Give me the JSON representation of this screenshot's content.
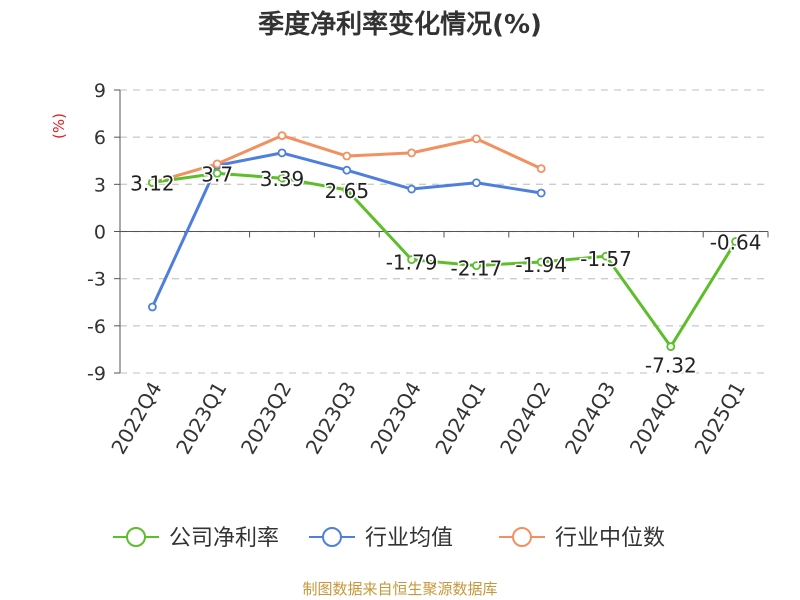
{
  "title": "季度净利率变化情况(%)",
  "source": "制图数据来自恒生聚源数据库",
  "chart_data": {
    "type": "line",
    "title": "季度净利率变化情况(%)",
    "ylabel": "(%)",
    "xlabel": "",
    "categories": [
      "2022Q4",
      "2023Q1",
      "2023Q2",
      "2023Q3",
      "2023Q4",
      "2024Q1",
      "2024Q2",
      "2024Q3",
      "2024Q4",
      "2025Q1"
    ],
    "ylim": [
      -9,
      9
    ],
    "yticks": [
      9,
      6,
      3,
      0,
      -3,
      -6,
      -9
    ],
    "grid": true,
    "legend_position": "bottom",
    "series": [
      {
        "name": "公司净利率",
        "color": "#5cbf2a",
        "values": [
          3.12,
          3.7,
          3.39,
          2.65,
          -1.79,
          -2.17,
          -1.94,
          -1.57,
          -7.32,
          -0.64
        ],
        "labels": [
          "3.12",
          "3.7",
          "3.39",
          "2.65",
          "-1.79",
          "-2.17",
          "-1.94",
          "-1.57",
          "-7.32",
          "-0.64"
        ]
      },
      {
        "name": "行业均值",
        "color": "#4f7fdc",
        "values": [
          -4.8,
          4.2,
          5.0,
          3.9,
          2.7,
          3.1,
          2.45,
          null,
          null,
          null
        ]
      },
      {
        "name": "行业中位数",
        "color": "#f39060",
        "values": [
          3.1,
          4.3,
          6.1,
          4.8,
          5.0,
          5.9,
          4.0,
          null,
          null,
          null
        ]
      }
    ]
  }
}
